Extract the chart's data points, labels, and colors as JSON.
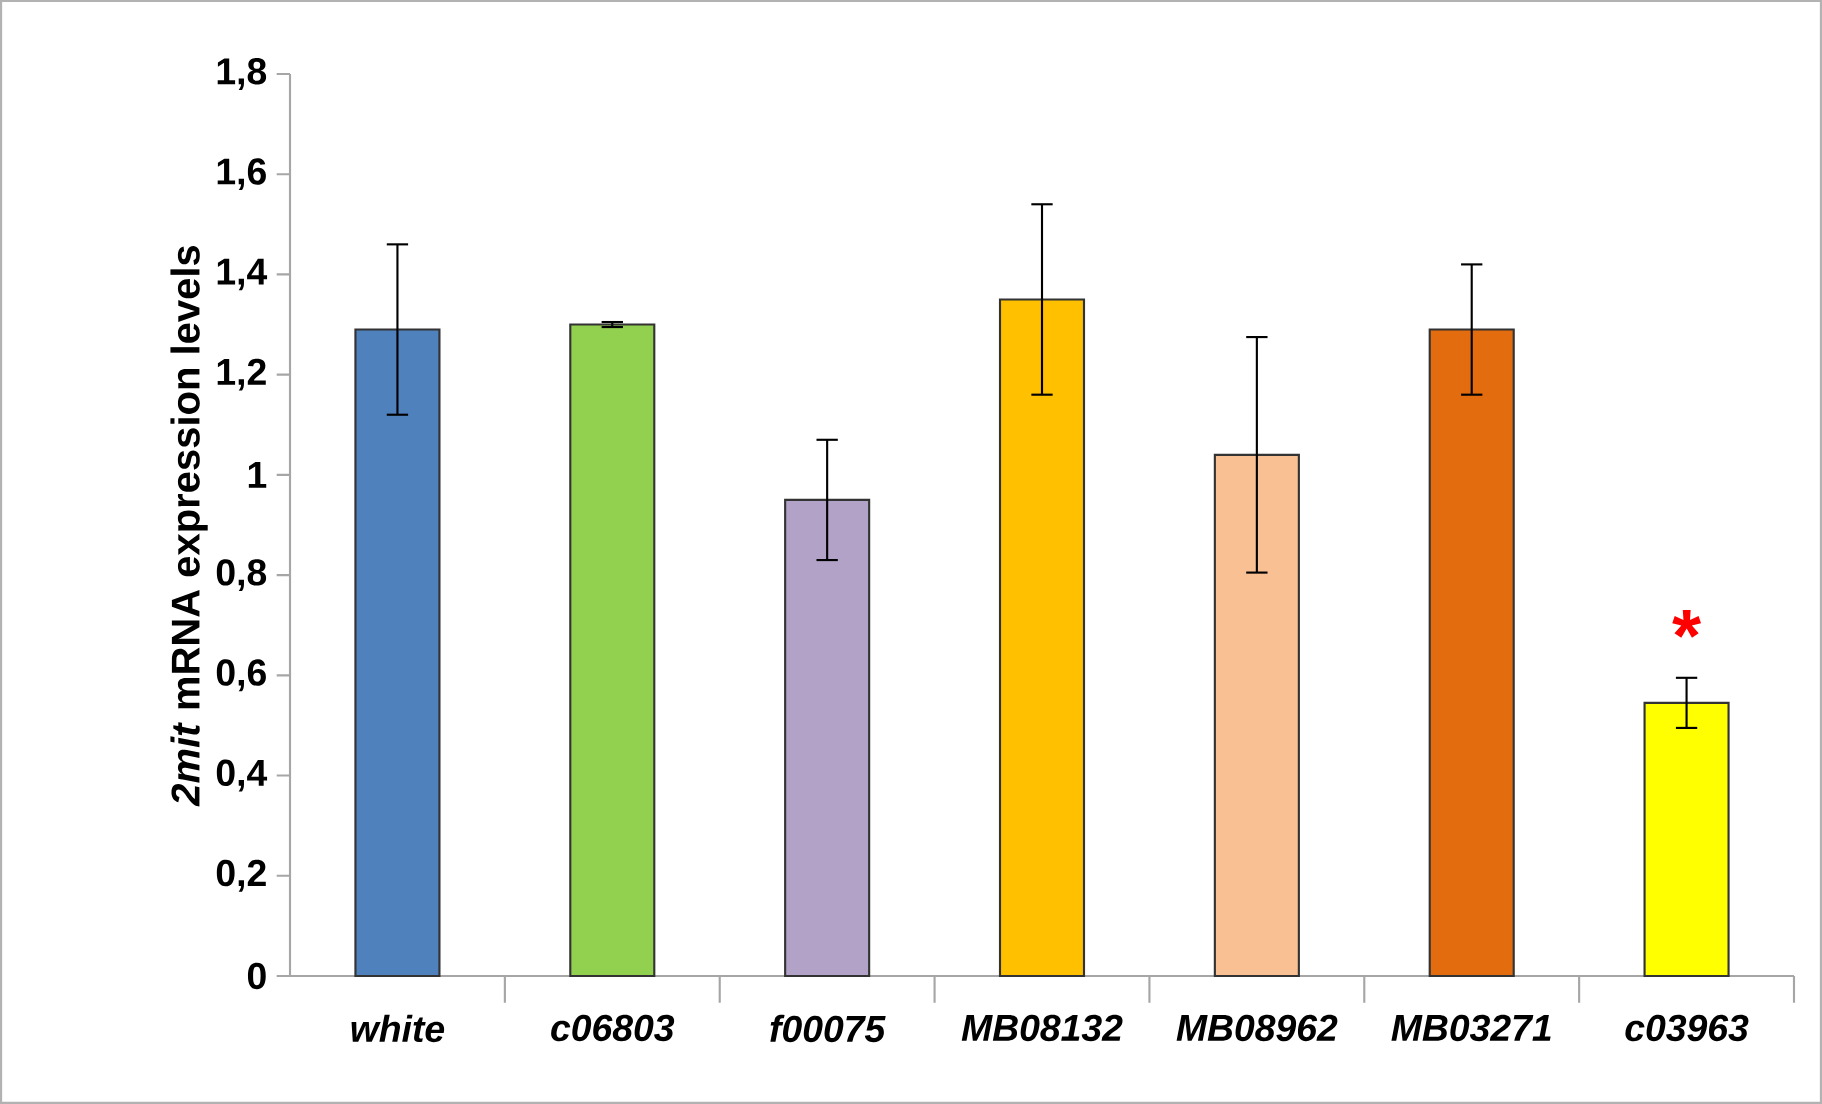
{
  "chart_data": {
    "type": "bar",
    "ylabel": "*2mit* mRNA expression levels",
    "categories": [
      "white",
      "c06803",
      "f00075",
      "MB08132",
      "MB08962",
      "MB03271",
      "c03963"
    ],
    "values": [
      1.29,
      1.3,
      0.95,
      1.35,
      1.04,
      1.29,
      0.545
    ],
    "errors": [
      0.17,
      0.005,
      0.12,
      0.19,
      0.235,
      0.13,
      0.05
    ],
    "colors": [
      "#4f81bd",
      "#92d050",
      "#b3a2c7",
      "#ffc000",
      "#f9c193",
      "#e36c0e",
      "#ffff00"
    ],
    "ylim": [
      0,
      1.8
    ],
    "yticks": [
      0,
      {
        "value": 0.2,
        "label": "0,2"
      },
      {
        "value": 0.4,
        "label": "0,4"
      },
      {
        "value": 0.6,
        "label": "0,6"
      },
      {
        "value": 0.8,
        "label": "0,8"
      },
      1,
      {
        "value": 1.2,
        "label": "1,2"
      },
      {
        "value": 1.4,
        "label": "1,4"
      },
      {
        "value": 1.6,
        "label": "1,6"
      },
      {
        "value": 1.8,
        "label": "1,8"
      }
    ],
    "annotations": [
      "*"
    ],
    "grid": false
  }
}
